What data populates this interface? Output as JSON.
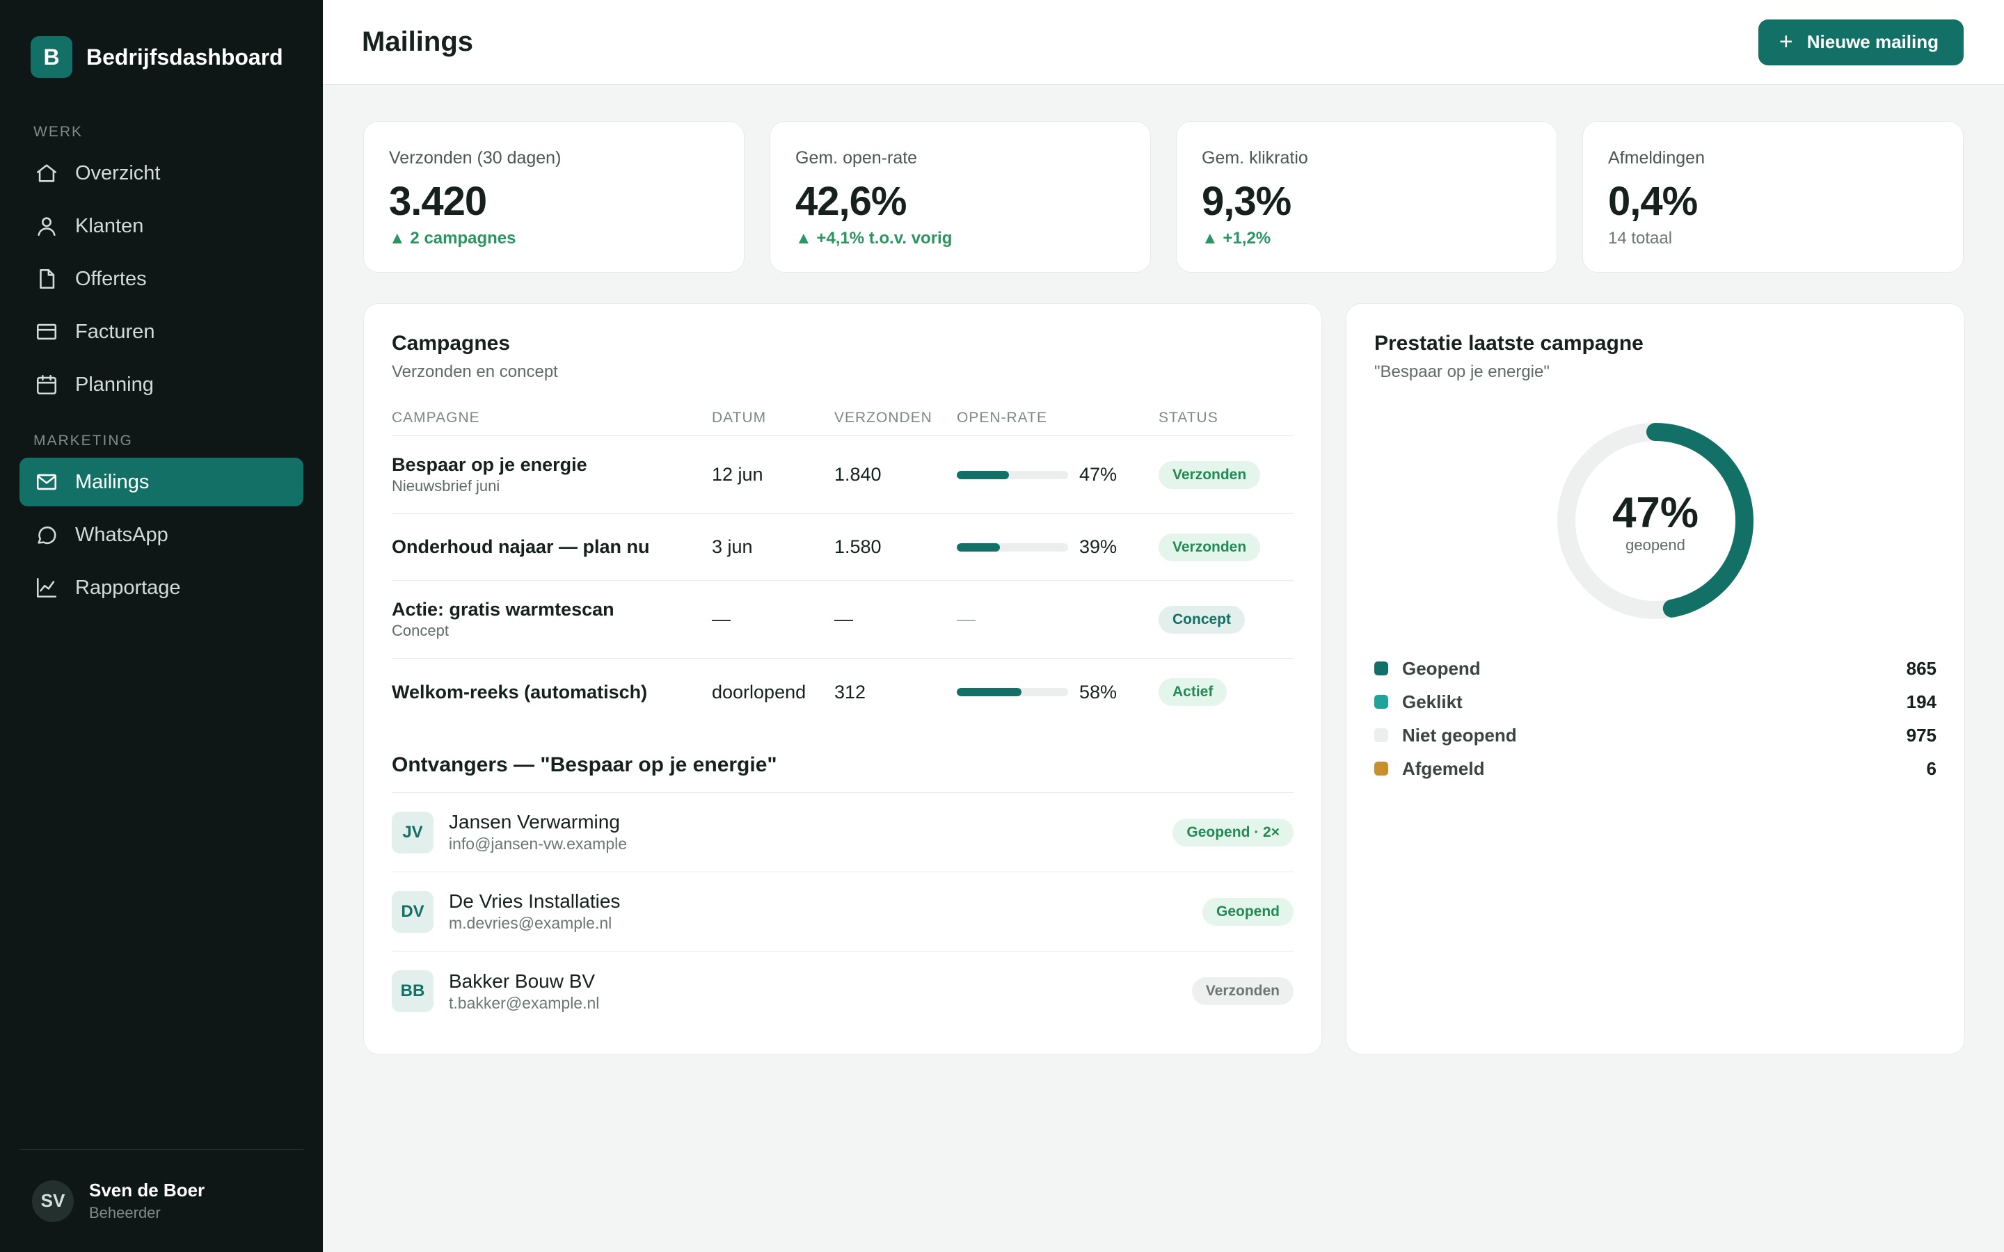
{
  "brand": {
    "logo_letter": "B",
    "name": "Bedrijfsdashboard"
  },
  "sidebar": {
    "section_work": "WERK",
    "section_marketing": "MARKETING",
    "items": [
      {
        "label": "Overzicht",
        "icon": "home-icon"
      },
      {
        "label": "Klanten",
        "icon": "user-icon"
      },
      {
        "label": "Offertes",
        "icon": "document-icon"
      },
      {
        "label": "Facturen",
        "icon": "credit-card-icon"
      },
      {
        "label": "Planning",
        "icon": "calendar-icon"
      },
      {
        "label": "Mailings",
        "icon": "mail-icon",
        "active": true
      },
      {
        "label": "WhatsApp",
        "icon": "chat-icon"
      },
      {
        "label": "Rapportage",
        "icon": "chart-icon"
      }
    ],
    "user": {
      "initials": "SV",
      "name": "Sven de Boer",
      "role": "Beheerder"
    }
  },
  "header": {
    "title": "Mailings",
    "new_button": "Nieuwe mailing",
    "plus": "+"
  },
  "kpis": [
    {
      "label": "Verzonden (30 dagen)",
      "value": "3.420",
      "sub": "▲ 2 campagnes"
    },
    {
      "label": "Gem. open-rate",
      "value": "42,6%",
      "sub": "▲ +4,1% t.o.v. vorig"
    },
    {
      "label": "Gem. klikratio",
      "value": "9,3%",
      "sub": "▲ +1,2%"
    },
    {
      "label": "Afmeldingen",
      "value": "0,4%",
      "sub": "14 totaal"
    }
  ],
  "campaigns": {
    "title": "Campagnes",
    "subtitle": "Verzonden en concept",
    "columns": [
      "CAMPAGNE",
      "DATUM",
      "VERZONDEN",
      "OPEN-RATE",
      "STATUS"
    ],
    "rows": [
      {
        "name": "Bespaar op je energie",
        "sub": "Nieuwsbrief juni",
        "date": "12 jun",
        "sent": "1.840",
        "rate": 0.47,
        "rate_label": "47%",
        "status": "Verzonden"
      },
      {
        "name": "Onderhoud najaar — plan nu",
        "sub": "",
        "date": "3 jun",
        "sent": "1.580",
        "rate": 0.39,
        "rate_label": "39%",
        "status": "Verzonden"
      },
      {
        "name": "Actie: gratis warmtescan",
        "sub": "Concept",
        "date": "—",
        "sent": "—",
        "rate_label": "—",
        "status": "Concept"
      },
      {
        "name": "Welkom-reeks (automatisch)",
        "sub": "",
        "date": "doorlopend",
        "sent": "312",
        "rate": 0.58,
        "rate_label": "58%",
        "status": "Actief"
      }
    ]
  },
  "recipients": {
    "title": "Ontvangers — \"Bespaar op je energie\"",
    "items": [
      {
        "initials": "JV",
        "name": "Jansen Verwarming",
        "email": "info@jansen-vw.example",
        "status": "Geopend · 2×"
      },
      {
        "initials": "DV",
        "name": "De Vries Installaties",
        "email": "m.devries@example.nl",
        "status": "Geopend"
      },
      {
        "initials": "BB",
        "name": "Bakker Bouw BV",
        "email": "t.bakker@example.nl",
        "status": "Verzonden"
      }
    ]
  },
  "performance": {
    "title": "Prestatie laatste campagne",
    "subtitle": "\"Bespaar op je energie\"",
    "donut_pct": "47%",
    "donut_label": "geopend",
    "legend": [
      {
        "name": "Geopend",
        "value": "865",
        "color": "#137066"
      },
      {
        "name": "Geklikt",
        "value": "194",
        "color": "#1fa39a"
      },
      {
        "name": "Niet geopend",
        "value": "975",
        "color": "#eceeed"
      },
      {
        "name": "Afgemeld",
        "value": "6",
        "color": "#c8902c"
      }
    ]
  },
  "chart_data": {
    "type": "pie",
    "categories": [
      "Geopend",
      "Geklikt",
      "Niet geopend",
      "Afgemeld"
    ],
    "values": [
      865,
      194,
      975,
      6
    ],
    "donut_fraction": 0.47,
    "title": "Prestatie laatste campagne"
  },
  "colors": {
    "accent": "#137066",
    "sidebar_bg": "#0e1716",
    "positive": "#2a9560"
  }
}
